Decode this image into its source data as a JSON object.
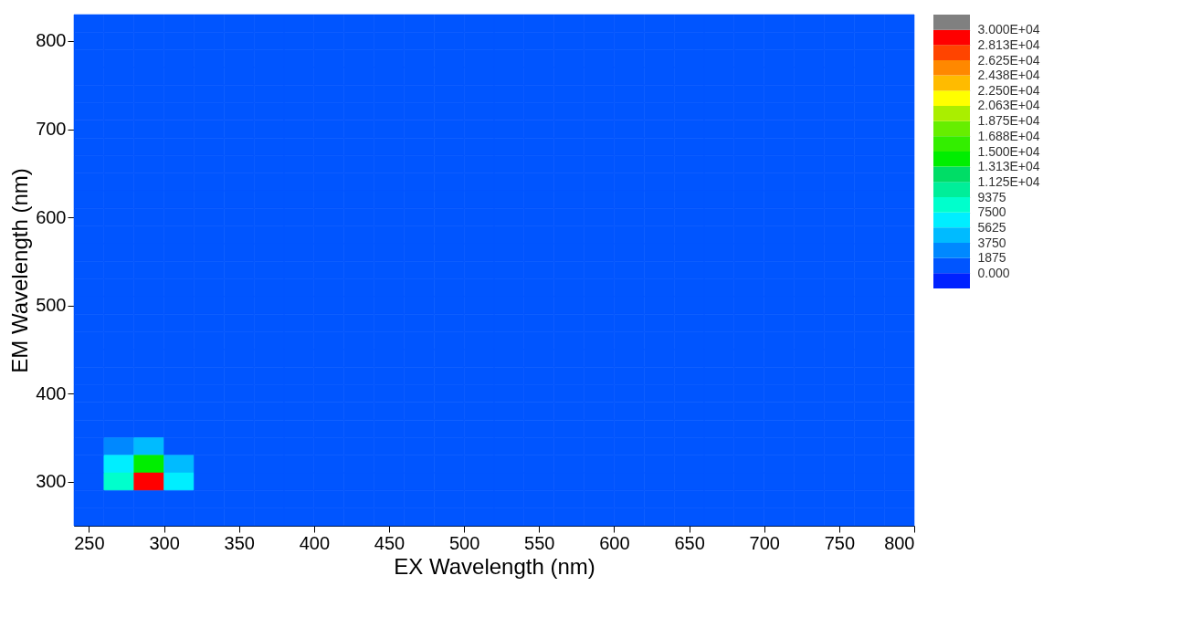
{
  "chart_data": {
    "type": "heatmap",
    "xlabel": "EX Wavelength (nm)",
    "ylabel": "EM Wavelength (nm)",
    "x": [
      250,
      270,
      290,
      310,
      330,
      350,
      370,
      390,
      410,
      430,
      450,
      470,
      490,
      510,
      530,
      550,
      570,
      590,
      610,
      630,
      650,
      670,
      690,
      710,
      730,
      750,
      770,
      790
    ],
    "y": [
      820,
      800,
      780,
      760,
      740,
      720,
      700,
      680,
      660,
      640,
      620,
      600,
      580,
      560,
      540,
      520,
      500,
      480,
      460,
      440,
      420,
      400,
      380,
      360,
      340,
      320,
      300,
      280,
      260
    ],
    "cells": [
      [
        0,
        0,
        0,
        0,
        0,
        0,
        0,
        0,
        0,
        0,
        0,
        0,
        0,
        0,
        0,
        0,
        0,
        0,
        0,
        0,
        0,
        0,
        0,
        0,
        0,
        0,
        0,
        0
      ],
      [
        0,
        0,
        0,
        0,
        0,
        0,
        0,
        0,
        0,
        0,
        0,
        0,
        0,
        0,
        0,
        0,
        0,
        0,
        0,
        0,
        0,
        0,
        0,
        0,
        0,
        0,
        0,
        0
      ],
      [
        0,
        0,
        0,
        0,
        0,
        0,
        0,
        0,
        0,
        0,
        0,
        0,
        0,
        0,
        0,
        0,
        0,
        0,
        0,
        0,
        0,
        0,
        0,
        0,
        0,
        0,
        0,
        0
      ],
      [
        0,
        0,
        0,
        0,
        0,
        0,
        0,
        0,
        0,
        0,
        0,
        0,
        0,
        0,
        0,
        0,
        0,
        0,
        0,
        0,
        0,
        0,
        0,
        0,
        0,
        0,
        0,
        0
      ],
      [
        0,
        0,
        0,
        0,
        0,
        0,
        0,
        0,
        0,
        0,
        0,
        0,
        0,
        0,
        0,
        0,
        0,
        0,
        0,
        0,
        0,
        0,
        0,
        0,
        0,
        0,
        0,
        0
      ],
      [
        0,
        0,
        0,
        0,
        0,
        0,
        0,
        0,
        0,
        0,
        0,
        0,
        0,
        0,
        0,
        0,
        0,
        0,
        0,
        0,
        0,
        0,
        0,
        0,
        0,
        0,
        0,
        0
      ],
      [
        0,
        0,
        0,
        0,
        0,
        0,
        0,
        0,
        0,
        0,
        0,
        0,
        0,
        0,
        0,
        0,
        0,
        0,
        0,
        0,
        0,
        0,
        0,
        0,
        0,
        0,
        0,
        0
      ],
      [
        0,
        0,
        0,
        0,
        0,
        0,
        0,
        0,
        0,
        0,
        0,
        0,
        0,
        0,
        0,
        0,
        0,
        0,
        0,
        0,
        0,
        0,
        0,
        0,
        0,
        0,
        0,
        0
      ],
      [
        0,
        0,
        0,
        0,
        0,
        0,
        0,
        0,
        0,
        0,
        0,
        0,
        0,
        0,
        0,
        0,
        0,
        0,
        0,
        0,
        0,
        0,
        0,
        0,
        0,
        0,
        0,
        0
      ],
      [
        0,
        0,
        0,
        0,
        0,
        0,
        0,
        0,
        0,
        0,
        0,
        0,
        0,
        0,
        0,
        0,
        0,
        0,
        0,
        0,
        0,
        0,
        0,
        0,
        0,
        0,
        0,
        0
      ],
      [
        0,
        0,
        0,
        0,
        0,
        0,
        0,
        0,
        0,
        0,
        0,
        0,
        0,
        0,
        0,
        0,
        0,
        0,
        0,
        0,
        0,
        0,
        0,
        0,
        0,
        0,
        0,
        0
      ],
      [
        0,
        0,
        0,
        0,
        0,
        0,
        0,
        0,
        0,
        0,
        0,
        0,
        0,
        0,
        0,
        0,
        0,
        0,
        0,
        0,
        0,
        0,
        0,
        0,
        0,
        0,
        0,
        0
      ],
      [
        0,
        0,
        0,
        0,
        0,
        0,
        0,
        0,
        0,
        0,
        0,
        0,
        0,
        0,
        0,
        0,
        0,
        0,
        0,
        0,
        0,
        0,
        0,
        0,
        0,
        0,
        0,
        0
      ],
      [
        0,
        0,
        0,
        0,
        0,
        0,
        0,
        0,
        0,
        0,
        0,
        0,
        0,
        0,
        0,
        0,
        0,
        0,
        0,
        0,
        0,
        0,
        0,
        0,
        0,
        0,
        0,
        0
      ],
      [
        0,
        0,
        0,
        0,
        0,
        0,
        0,
        0,
        0,
        0,
        0,
        0,
        0,
        0,
        0,
        0,
        0,
        0,
        0,
        0,
        0,
        0,
        0,
        0,
        0,
        0,
        0,
        0
      ],
      [
        0,
        0,
        0,
        0,
        0,
        0,
        0,
        0,
        0,
        0,
        0,
        0,
        0,
        0,
        0,
        0,
        0,
        0,
        0,
        0,
        0,
        0,
        0,
        0,
        0,
        0,
        0,
        0
      ],
      [
        0,
        0,
        0,
        0,
        0,
        0,
        0,
        0,
        0,
        0,
        0,
        0,
        0,
        0,
        0,
        0,
        0,
        0,
        0,
        0,
        0,
        0,
        0,
        0,
        0,
        0,
        0,
        0
      ],
      [
        0,
        0,
        0,
        0,
        0,
        0,
        0,
        0,
        0,
        0,
        0,
        0,
        0,
        0,
        0,
        0,
        0,
        0,
        0,
        0,
        0,
        0,
        0,
        0,
        0,
        0,
        0,
        0
      ],
      [
        0,
        0,
        0,
        0,
        0,
        0,
        0,
        0,
        0,
        0,
        0,
        0,
        0,
        0,
        0,
        0,
        0,
        0,
        0,
        0,
        0,
        0,
        0,
        0,
        0,
        0,
        0,
        0
      ],
      [
        0,
        0,
        0,
        0,
        0,
        0,
        0,
        0,
        0,
        0,
        0,
        0,
        0,
        0,
        0,
        0,
        0,
        0,
        0,
        0,
        0,
        0,
        0,
        0,
        0,
        0,
        0,
        0
      ],
      [
        0,
        0,
        0,
        0,
        0,
        0,
        0,
        0,
        0,
        0,
        0,
        0,
        0,
        0,
        0,
        0,
        0,
        0,
        0,
        0,
        0,
        0,
        0,
        0,
        0,
        0,
        0,
        0
      ],
      [
        0,
        0,
        0,
        0,
        0,
        0,
        0,
        0,
        0,
        0,
        0,
        0,
        0,
        0,
        0,
        0,
        0,
        0,
        0,
        0,
        0,
        0,
        0,
        0,
        0,
        0,
        0,
        0
      ],
      [
        0,
        0,
        0,
        0,
        0,
        0,
        0,
        0,
        0,
        0,
        0,
        0,
        0,
        0,
        0,
        0,
        0,
        0,
        0,
        0,
        0,
        0,
        0,
        0,
        0,
        0,
        0,
        0
      ],
      [
        0,
        0,
        0,
        0,
        0,
        0,
        0,
        0,
        0,
        0,
        0,
        0,
        0,
        0,
        0,
        0,
        0,
        0,
        0,
        0,
        0,
        0,
        0,
        0,
        0,
        0,
        0,
        0
      ],
      [
        0,
        2000,
        4000,
        1000,
        0,
        0,
        0,
        0,
        0,
        0,
        0,
        0,
        0,
        0,
        0,
        0,
        0,
        0,
        0,
        0,
        0,
        0,
        0,
        0,
        0,
        0,
        0,
        0
      ],
      [
        0,
        6000,
        14000,
        5000,
        0,
        0,
        0,
        0,
        0,
        0,
        0,
        0,
        0,
        0,
        0,
        0,
        0,
        0,
        0,
        0,
        0,
        0,
        0,
        0,
        0,
        0,
        0,
        0
      ],
      [
        1000,
        9000,
        29000,
        6000,
        0,
        0,
        0,
        0,
        0,
        0,
        0,
        0,
        0,
        0,
        0,
        0,
        0,
        0,
        0,
        0,
        0,
        0,
        0,
        0,
        0,
        0,
        0,
        0
      ],
      [
        0,
        0,
        0,
        0,
        0,
        0,
        0,
        0,
        0,
        0,
        0,
        0,
        0,
        0,
        0,
        0,
        0,
        0,
        0,
        0,
        0,
        0,
        0,
        0,
        0,
        0,
        0,
        0
      ],
      [
        0,
        0,
        0,
        0,
        0,
        0,
        0,
        0,
        0,
        0,
        0,
        0,
        0,
        0,
        0,
        0,
        0,
        0,
        0,
        0,
        0,
        0,
        0,
        0,
        0,
        0,
        0,
        0
      ]
    ],
    "xlim": [
      240,
      800
    ],
    "xticks": [
      250,
      300,
      350,
      400,
      450,
      500,
      550,
      600,
      650,
      700,
      750,
      800
    ],
    "ylim": [
      250,
      830
    ],
    "yticks": [
      300,
      400,
      500,
      600,
      700,
      800
    ],
    "clim": [
      0,
      30000
    ],
    "cticks": [
      {
        "value": 0,
        "label": "0.000"
      },
      1875,
      3750,
      5625,
      7500,
      9375,
      {
        "value": 11250,
        "label": "1.125E+04"
      },
      {
        "value": 13130,
        "label": "1.313E+04"
      },
      {
        "value": 15000,
        "label": "1.500E+04"
      },
      {
        "value": 16880,
        "label": "1.688E+04"
      },
      {
        "value": 18750,
        "label": "1.875E+04"
      },
      {
        "value": 20630,
        "label": "2.063E+04"
      },
      {
        "value": 22500,
        "label": "2.250E+04"
      },
      {
        "value": 24380,
        "label": "2.438E+04"
      },
      {
        "value": 26250,
        "label": "2.625E+04"
      },
      {
        "value": 28130,
        "label": "2.813E+04"
      },
      {
        "value": 30000,
        "label": "3.000E+04"
      }
    ]
  }
}
